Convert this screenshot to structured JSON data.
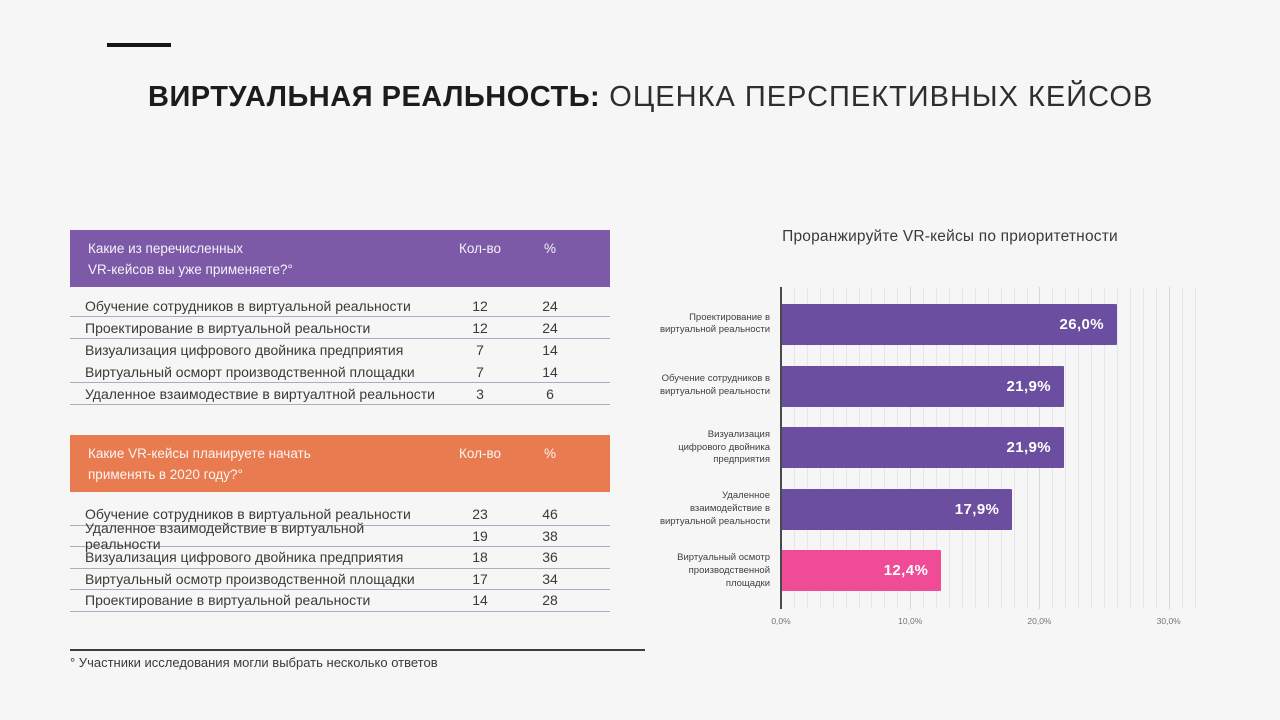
{
  "title": {
    "bold": "ВИРТУАЛЬНАЯ РЕАЛЬНОСТЬ:",
    "regular": " ОЦЕНКА ПЕРСПЕКТИВНЫХ КЕЙСОВ"
  },
  "colors": {
    "background": "#f7f6f7",
    "table1_accent": "#7d5aa7",
    "table2_accent": "#e87b50",
    "bar_purple": "#6b4ea0",
    "bar_pink": "#ef4b96"
  },
  "tables": [
    {
      "accent": "#7d5aa7",
      "header": {
        "question": "Какие из перечисленных\nVR-кейсов вы уже применяете?°",
        "col_count": "Кол-во",
        "col_pct": "%"
      },
      "rows": [
        {
          "label": "Обучение сотрудников в виртуальной реальности",
          "count": "12",
          "pct": "24",
          "divider": true
        },
        {
          "label": "Проектирование в виртуальной реальности",
          "count": "12",
          "pct": "24",
          "divider": true
        },
        {
          "label": "Визуализация цифрового двойника предприятия",
          "count": "7",
          "pct": "14",
          "divider": false
        },
        {
          "label": "Виртуальный осморт производственной площадки",
          "count": "7",
          "pct": "14",
          "divider": true
        },
        {
          "label": "Удаленное взаимодествие в виртуалтной реальности",
          "count": "3",
          "pct": "6",
          "divider": true
        }
      ]
    },
    {
      "accent": "#e87b50",
      "header": {
        "question": "Какие VR-кейсы планируете начать\nприменять в 2020 году?°",
        "col_count": "Кол-во",
        "col_pct": "%"
      },
      "rows": [
        {
          "label": "Обучение сотрудников в виртуальной реальности",
          "count": "23",
          "pct": "46",
          "divider": true
        },
        {
          "label": "Удаленное взаимодействие в виртуальной реальности",
          "count": "19",
          "pct": "38",
          "divider": true
        },
        {
          "label": "Визуализация цифрового двойника предприятия",
          "count": "18",
          "pct": "36",
          "divider": true
        },
        {
          "label": "Виртуальный осмотр производственной площадки",
          "count": "17",
          "pct": "34",
          "divider": true
        },
        {
          "label": "Проектирование в виртуальной реальности",
          "count": "14",
          "pct": "28",
          "divider": true
        }
      ]
    }
  ],
  "footnote": {
    "text": "° Участники исследования могли выбрать несколько ответов"
  },
  "chart_data": {
    "type": "bar",
    "orientation": "horizontal",
    "title": "Проранжируйте VR-кейсы по приоритетности",
    "categories": [
      "Проектирование в\nвиртуальной реальности",
      "Обучение сотрудников в\nвиртуальной реальности",
      "Визуализация\nцифрового двойника\nпредприятия",
      "Удаленное\nвзаимодействие в\nвиртуальной реальности",
      "Виртуальный осмотр\nпроизводственной\nплощадки"
    ],
    "values": [
      26.0,
      21.9,
      21.9,
      17.9,
      12.4
    ],
    "value_labels": [
      "26,0%",
      "21,9%",
      "21,9%",
      "17,9%",
      "12,4%"
    ],
    "bar_colors": [
      "#6b4ea0",
      "#6b4ea0",
      "#6b4ea0",
      "#6b4ea0",
      "#ef4b96"
    ],
    "xlabel": "",
    "ylabel": "",
    "xlim": [
      0,
      32.5
    ],
    "x_ticks": [
      {
        "value": 0,
        "label": "0,0%"
      },
      {
        "value": 10,
        "label": "10,0%"
      },
      {
        "value": 20,
        "label": "20,0%"
      },
      {
        "value": 30,
        "label": "30,0%"
      }
    ],
    "grid": {
      "show": true,
      "minor_step": 1,
      "major_step": 10
    },
    "legend": "none"
  }
}
